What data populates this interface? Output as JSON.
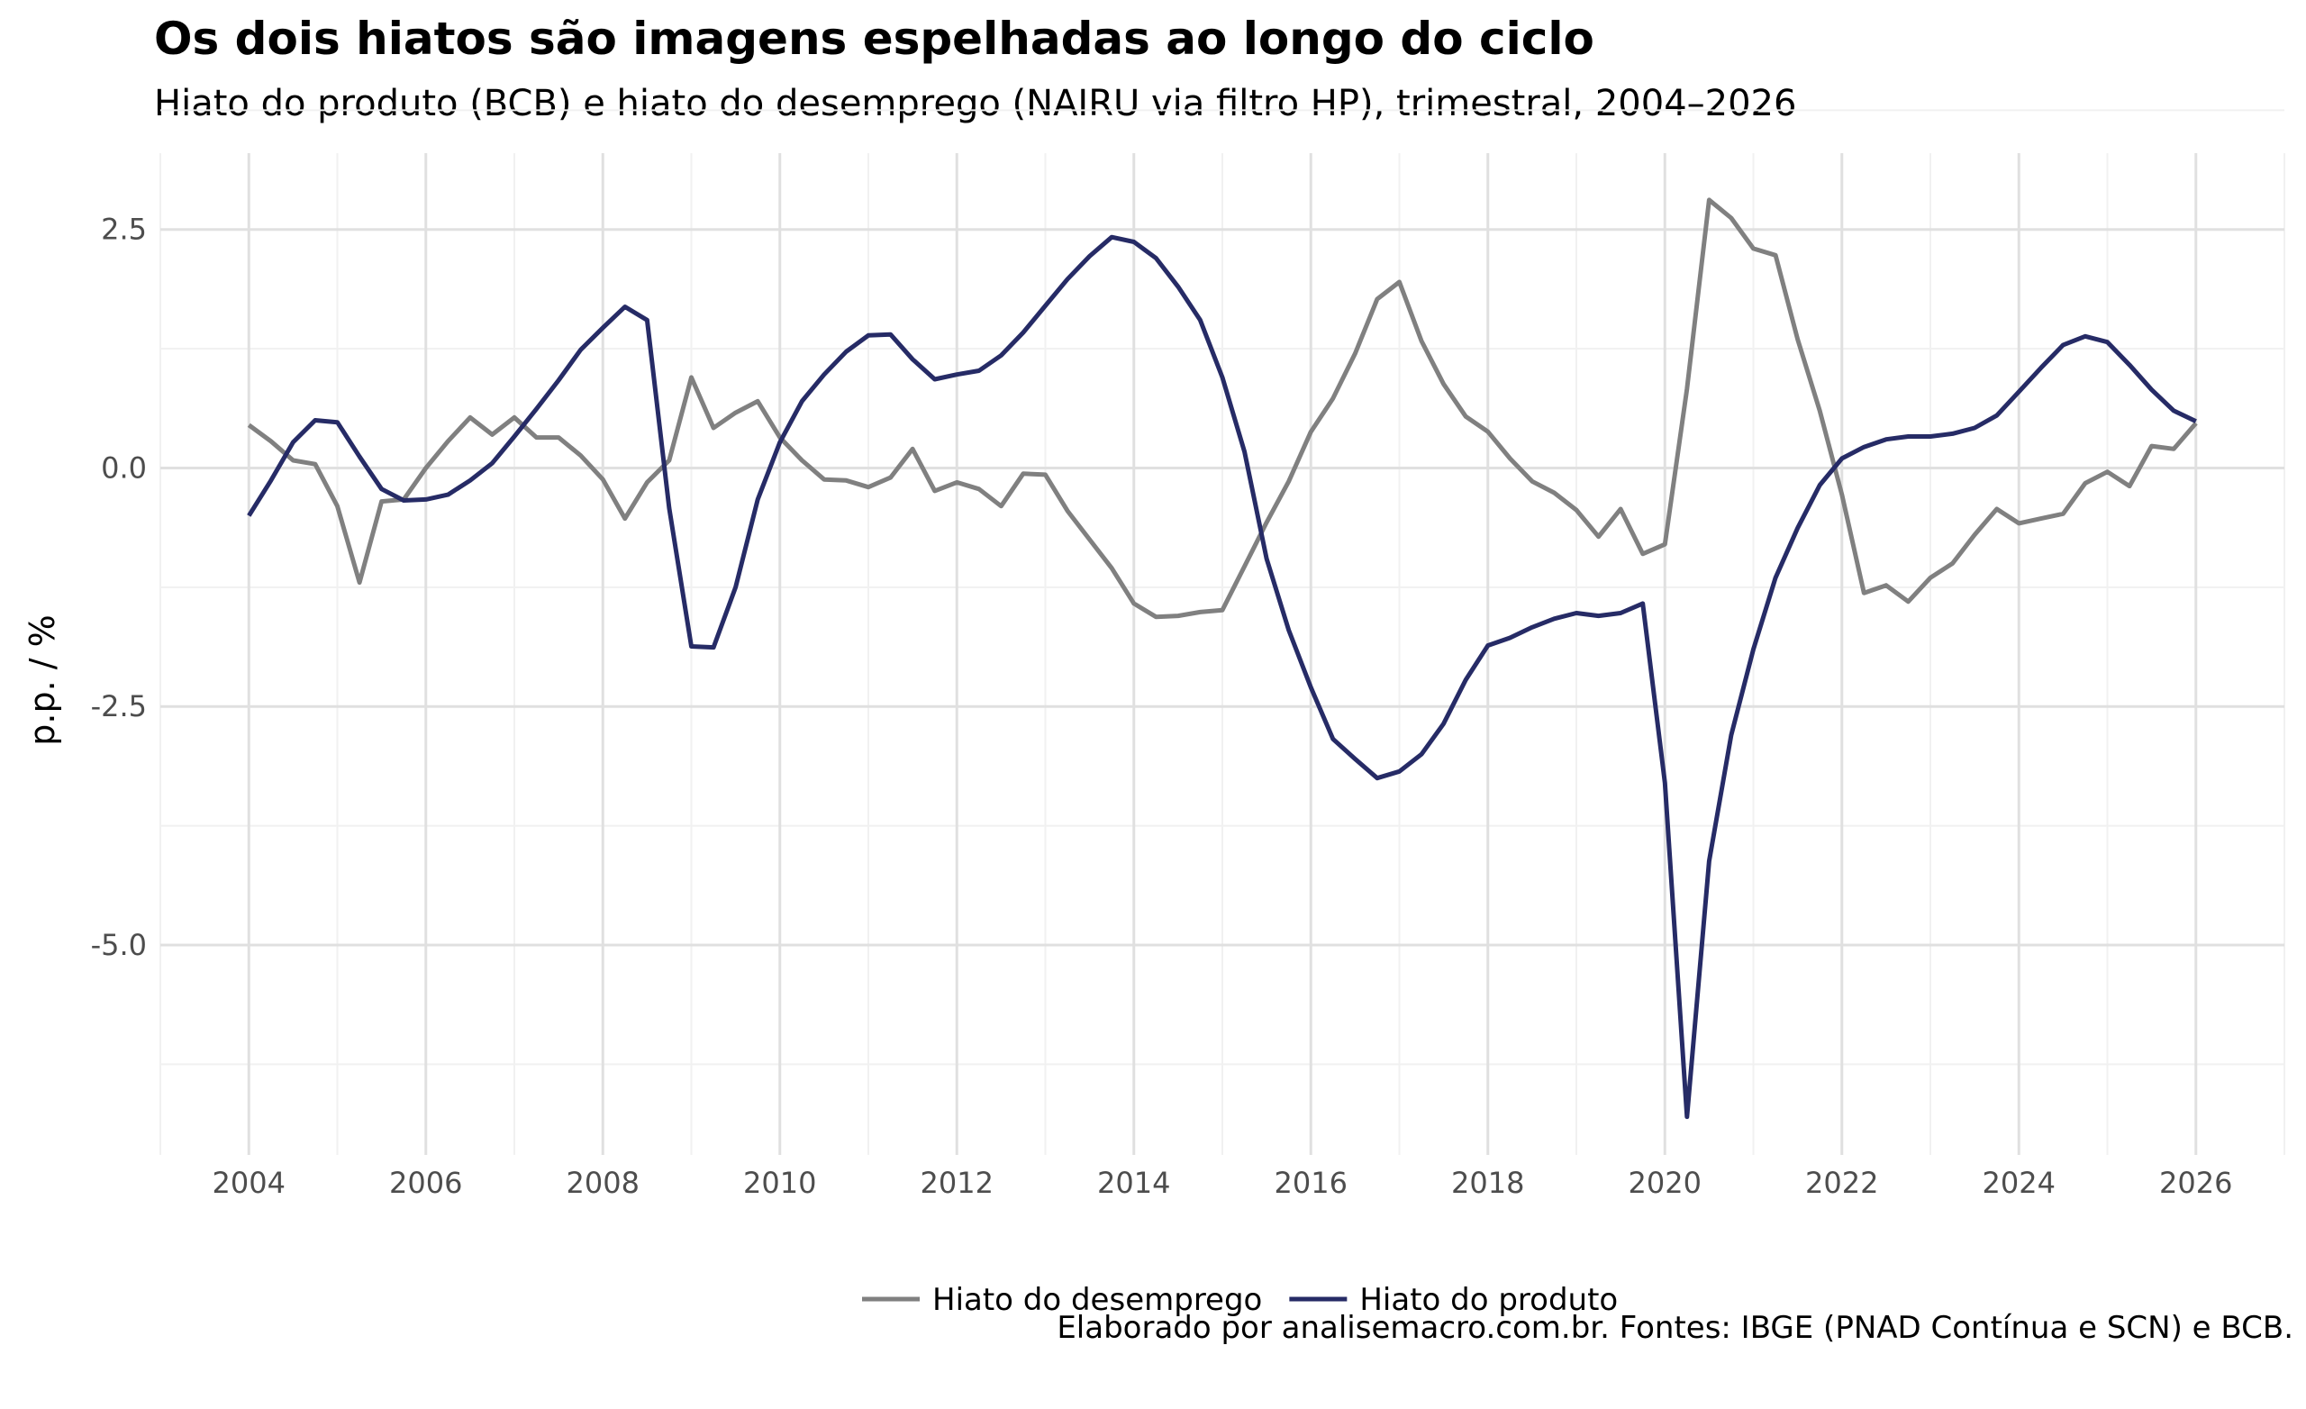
{
  "title": "Os dois hiatos são imagens espelhadas ao longo do ciclo",
  "subtitle": "Hiato do produto (BCB) e hiato do desemprego (NAIRU via filtro HP), trimestral, 2004–2026",
  "caption": "Elaborado por analisemacro.com.br. Fontes: IBGE (PNAD Contínua e SCN) e BCB.",
  "colors": {
    "unemployment_gap": "#808080",
    "output_gap": "#262b66",
    "grid_major": "#e0e0e0",
    "grid_minor": "#f1f1f1"
  },
  "chart_data": {
    "type": "line",
    "ylabel": "p.p. / %",
    "xlim": [
      2003.0,
      2027.0
    ],
    "ylim": [
      -7.2,
      3.3
    ],
    "x_ticks": [
      2004,
      2006,
      2008,
      2010,
      2012,
      2014,
      2016,
      2018,
      2020,
      2022,
      2024,
      2026
    ],
    "x_tick_labels": [
      "2004",
      "2006",
      "2008",
      "2010",
      "2012",
      "2014",
      "2016",
      "2018",
      "2020",
      "2022",
      "2024",
      "2026"
    ],
    "y_ticks": [
      2.5,
      0.0,
      -2.5,
      -5.0
    ],
    "y_tick_labels": [
      "2.5",
      "0.0",
      "-2.5",
      "-5.0"
    ],
    "grid": true,
    "legend_position": "bottom",
    "x_start": 2004.0,
    "x_step": 0.25,
    "series": [
      {
        "name": "Hiato do desemprego",
        "color": "#808080",
        "values": [
          0.45,
          0.28,
          0.08,
          0.04,
          -0.4,
          -1.2,
          -0.35,
          -0.33,
          0.0,
          0.28,
          0.53,
          0.35,
          0.53,
          0.32,
          0.32,
          0.13,
          -0.12,
          -0.53,
          -0.15,
          0.08,
          0.95,
          0.42,
          0.58,
          0.7,
          0.32,
          0.08,
          -0.12,
          -0.13,
          -0.2,
          -0.1,
          0.2,
          -0.24,
          -0.15,
          -0.22,
          -0.4,
          -0.06,
          -0.07,
          -0.45,
          -0.75,
          -1.05,
          -1.42,
          -1.56,
          -1.55,
          -1.51,
          -1.49,
          -1.03,
          -0.57,
          -0.14,
          0.38,
          0.73,
          1.2,
          1.77,
          1.95,
          1.33,
          0.88,
          0.54,
          0.38,
          0.1,
          -0.14,
          -0.26,
          -0.44,
          -0.72,
          -0.43,
          -0.9,
          -0.8,
          0.83,
          2.81,
          2.62,
          2.3,
          2.23,
          1.35,
          0.6,
          -0.28,
          -1.31,
          -1.23,
          -1.4,
          -1.15,
          -1.0,
          -0.7,
          -0.43,
          -0.58,
          -0.53,
          -0.48,
          -0.16,
          -0.04,
          -0.19,
          0.23,
          0.2,
          0.47
        ]
      },
      {
        "name": "Hiato do produto",
        "color": "#262b66",
        "values": [
          -0.5,
          -0.13,
          0.27,
          0.5,
          0.48,
          0.12,
          -0.22,
          -0.34,
          -0.33,
          -0.28,
          -0.13,
          0.05,
          0.33,
          0.62,
          0.92,
          1.24,
          1.47,
          1.69,
          1.55,
          -0.42,
          -1.87,
          -1.88,
          -1.25,
          -0.33,
          0.27,
          0.7,
          0.98,
          1.22,
          1.39,
          1.4,
          1.14,
          0.93,
          0.98,
          1.02,
          1.18,
          1.42,
          1.7,
          1.98,
          2.22,
          2.42,
          2.37,
          2.2,
          1.9,
          1.55,
          0.95,
          0.17,
          -0.95,
          -1.7,
          -2.3,
          -2.84,
          -3.05,
          -3.25,
          -3.18,
          -3.0,
          -2.68,
          -2.22,
          -1.86,
          -1.78,
          -1.67,
          -1.58,
          -1.52,
          -1.55,
          -1.52,
          -1.42,
          -3.3,
          -6.8,
          -4.12,
          -2.8,
          -1.9,
          -1.15,
          -0.63,
          -0.18,
          0.1,
          0.22,
          0.3,
          0.33,
          0.33,
          0.36,
          0.42,
          0.55,
          0.8,
          1.05,
          1.29,
          1.38,
          1.32,
          1.08,
          0.82,
          0.6,
          0.49
        ]
      }
    ]
  }
}
